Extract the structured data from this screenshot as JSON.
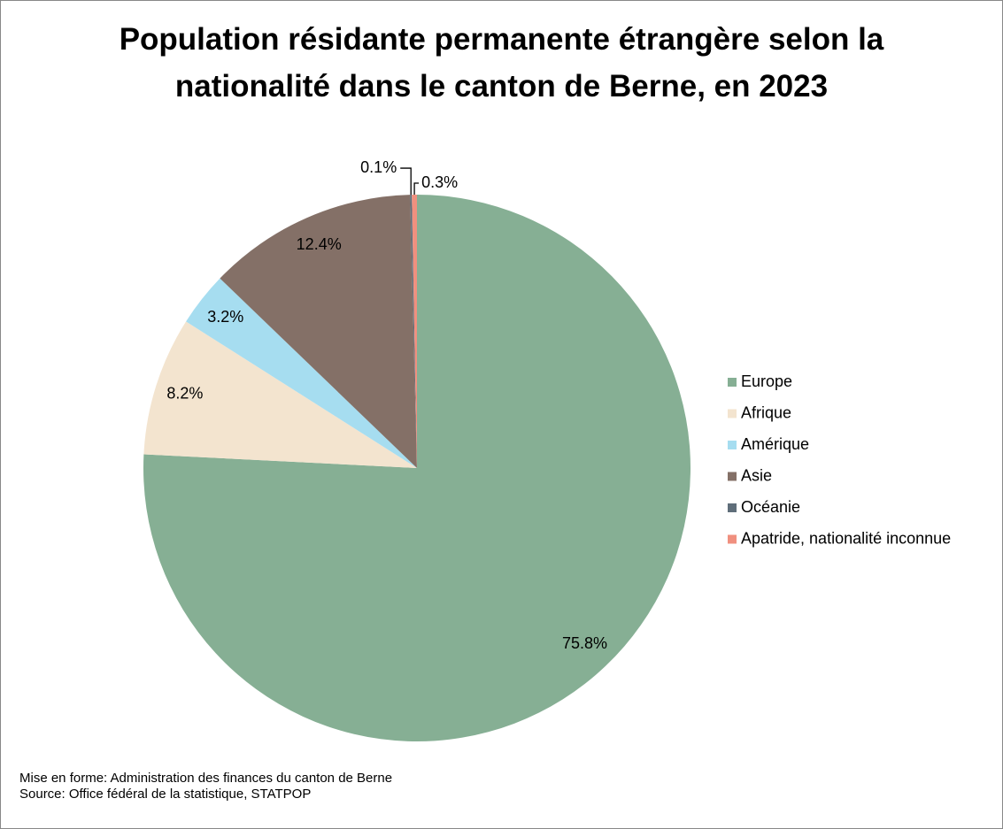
{
  "chart_data": {
    "type": "pie",
    "title": "Population résidante permanente étrangère selon la nationalité dans le canton de Berne, en 2023",
    "categories": [
      "Europe",
      "Afrique",
      "Amérique",
      "Asie",
      "Océanie",
      "Apatride, nationalité inconnue"
    ],
    "values": [
      75.8,
      8.2,
      3.2,
      12.4,
      0.1,
      0.3
    ],
    "value_labels": [
      "75.8%",
      "8.2%",
      "3.2%",
      "12.4%",
      "0.1%",
      "0.3%"
    ],
    "colors": [
      "#86af94",
      "#f3e4cf",
      "#a6ddf0",
      "#847067",
      "#5f6e7a",
      "#f0907f"
    ],
    "legend": "right",
    "notes": [
      "Mise en forme: Administration des finances du canton de Berne",
      "Source: Office fédéral de la statistique, STATPOP"
    ]
  }
}
